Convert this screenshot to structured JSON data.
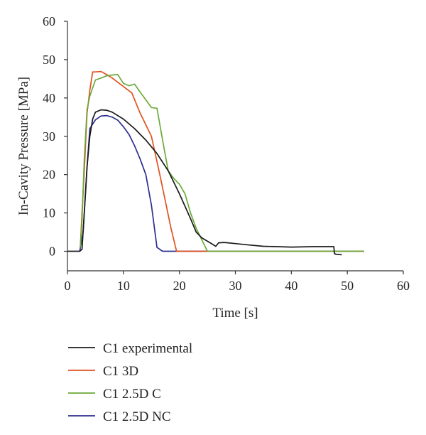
{
  "chart_data": {
    "type": "line",
    "xlabel": "Time [s]",
    "ylabel": "In-Cavity Pressure [MPa]",
    "xlim": [
      0,
      60
    ],
    "ylim": [
      -5,
      60
    ],
    "xticks": [
      "0",
      "10",
      "20",
      "30",
      "40",
      "50",
      "60"
    ],
    "yticks": [
      "0",
      "10",
      "20",
      "30",
      "40",
      "50",
      "60"
    ],
    "grid": false,
    "legend_position": "bottom-left",
    "series": [
      {
        "name": "C1 experimental",
        "color": "#1a1a1a",
        "points": [
          [
            0,
            0
          ],
          [
            2.2,
            0
          ],
          [
            2.6,
            0.5
          ],
          [
            3.0,
            10
          ],
          [
            3.5,
            22
          ],
          [
            4.0,
            30
          ],
          [
            4.5,
            34.5
          ],
          [
            5.0,
            36.3
          ],
          [
            6.0,
            36.9
          ],
          [
            7.0,
            36.8
          ],
          [
            8.0,
            36.3
          ],
          [
            10.0,
            34.5
          ],
          [
            12.0,
            32
          ],
          [
            14.0,
            29
          ],
          [
            16.0,
            25.5
          ],
          [
            18.0,
            21
          ],
          [
            20.0,
            15
          ],
          [
            22.0,
            8.5
          ],
          [
            23.0,
            5
          ],
          [
            24.0,
            3.5
          ],
          [
            25.5,
            2.2
          ],
          [
            26.5,
            1.3
          ],
          [
            27.0,
            2.2
          ],
          [
            28.0,
            2.3
          ],
          [
            30.0,
            2.0
          ],
          [
            32.0,
            1.7
          ],
          [
            35.0,
            1.3
          ],
          [
            40.0,
            1.1
          ],
          [
            44.0,
            1.2
          ],
          [
            47.6,
            1.2
          ],
          [
            47.7,
            -0.6
          ],
          [
            48.0,
            -0.8
          ],
          [
            49.0,
            -0.9
          ]
        ]
      },
      {
        "name": "C1 3D",
        "color": "#e0521f",
        "points": [
          [
            2.3,
            1
          ],
          [
            2.6,
            10
          ],
          [
            3.0,
            21
          ],
          [
            3.5,
            36
          ],
          [
            4.0,
            42
          ],
          [
            4.5,
            46.8
          ],
          [
            5.0,
            46.8
          ],
          [
            6.0,
            46.9
          ],
          [
            7.0,
            46.1
          ],
          [
            8.0,
            45.2
          ],
          [
            10.0,
            43
          ],
          [
            11.5,
            41.3
          ],
          [
            13.0,
            36
          ],
          [
            15.0,
            30
          ],
          [
            16.5,
            20
          ],
          [
            17.5,
            13
          ],
          [
            18.5,
            6
          ],
          [
            19.5,
            0
          ],
          [
            53.0,
            0
          ]
        ]
      },
      {
        "name": "C1 2.5D C",
        "color": "#6aaa3a",
        "points": [
          [
            2.3,
            1
          ],
          [
            2.6,
            8
          ],
          [
            3.0,
            24
          ],
          [
            3.5,
            37
          ],
          [
            4.0,
            40.5
          ],
          [
            5.0,
            44.7
          ],
          [
            6.0,
            45.2
          ],
          [
            7.0,
            45.8
          ],
          [
            8.0,
            46.0
          ],
          [
            9.0,
            46.1
          ],
          [
            10.0,
            43.8
          ],
          [
            11.0,
            43.2
          ],
          [
            12.0,
            43.6
          ],
          [
            13.0,
            41.5
          ],
          [
            14.0,
            39.5
          ],
          [
            15.0,
            37.5
          ],
          [
            16.0,
            37.3
          ],
          [
            17.0,
            29
          ],
          [
            18.0,
            21
          ],
          [
            19.0,
            19
          ],
          [
            20.0,
            17.5
          ],
          [
            21.0,
            15
          ],
          [
            22.0,
            10
          ],
          [
            23.0,
            6
          ],
          [
            24.0,
            3
          ],
          [
            25.0,
            0
          ],
          [
            53.0,
            0
          ]
        ]
      },
      {
        "name": "C1 2.5D NC",
        "color": "#2b2e8f",
        "points": [
          [
            2.2,
            0
          ],
          [
            2.8,
            5
          ],
          [
            3.5,
            22
          ],
          [
            4.0,
            32
          ],
          [
            4.5,
            33.2
          ],
          [
            5.0,
            34.3
          ],
          [
            6.0,
            35.3
          ],
          [
            7.0,
            35.4
          ],
          [
            8.0,
            35.0
          ],
          [
            9.0,
            34.2
          ],
          [
            10.0,
            32.5
          ],
          [
            11.0,
            30.5
          ],
          [
            12.0,
            27.5
          ],
          [
            13.0,
            24
          ],
          [
            14.0,
            20
          ],
          [
            15.0,
            12
          ],
          [
            16.0,
            1
          ],
          [
            17.0,
            0
          ],
          [
            53.0,
            0
          ]
        ]
      }
    ]
  }
}
